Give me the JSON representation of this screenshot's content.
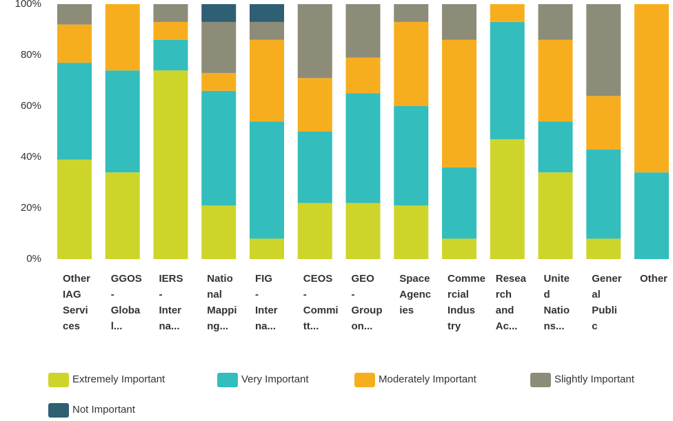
{
  "chart_data": {
    "type": "stacked_bar_percent",
    "categories": [
      "Other IAG Services",
      "GGOS - Global...",
      "IERS - Interna...",
      "National Mapping...",
      "FIG - Interna...",
      "CEOS - Committ...",
      "GEO - Group on...",
      "Space Agencies",
      "Commercial Industry",
      "Research and Ac...",
      "United Nations...",
      "General Public",
      "Other"
    ],
    "series": [
      {
        "name": "Extremely Important",
        "color": "#cdd52a",
        "values": [
          39,
          34,
          74,
          21,
          8,
          22,
          22,
          21,
          8,
          47,
          34,
          8,
          0
        ]
      },
      {
        "name": "Very Important",
        "color": "#33bdbd",
        "values": [
          38,
          40,
          12,
          45,
          46,
          28,
          43,
          39,
          28,
          46,
          20,
          35,
          34
        ]
      },
      {
        "name": "Moderately Important",
        "color": "#f7ae1e",
        "values": [
          15,
          26,
          7,
          7,
          32,
          21,
          14,
          33,
          50,
          7,
          32,
          21,
          66
        ]
      },
      {
        "name": "Slightly Important",
        "color": "#8c8c78",
        "values": [
          8,
          0,
          7,
          20,
          7,
          29,
          21,
          7,
          14,
          0,
          14,
          36,
          0
        ]
      },
      {
        "name": "Not Important",
        "color": "#2f5f73",
        "values": [
          0,
          0,
          0,
          7,
          7,
          0,
          0,
          0,
          0,
          0,
          0,
          0,
          0
        ]
      }
    ],
    "ylim": [
      0,
      100
    ],
    "yticks": [
      {
        "value": 0,
        "label": "0%"
      },
      {
        "value": 20,
        "label": "20%"
      },
      {
        "value": 40,
        "label": "40%"
      },
      {
        "value": 60,
        "label": "60%"
      },
      {
        "value": 80,
        "label": "80%"
      },
      {
        "value": 100,
        "label": "100%"
      }
    ],
    "grid": false,
    "legend": "bottom"
  }
}
